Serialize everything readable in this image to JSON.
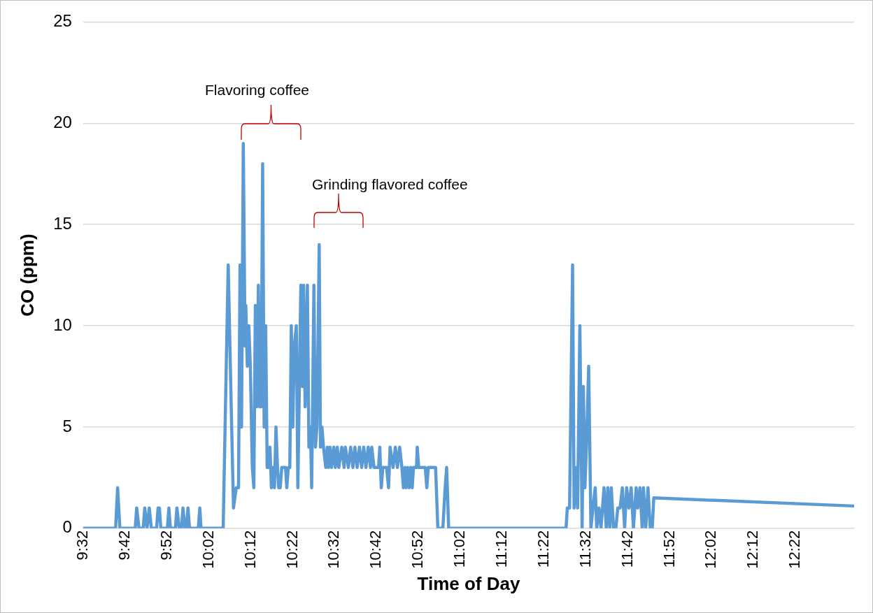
{
  "chart_data": {
    "type": "line",
    "xlabel": "Time of Day",
    "ylabel": "CO (ppm)",
    "x": [
      9.533,
      9.662,
      9.67,
      9.679,
      9.74,
      9.746,
      9.755,
      9.772,
      9.778,
      9.787,
      9.796,
      9.804,
      9.825,
      9.831,
      9.836,
      9.842,
      9.868,
      9.874,
      9.88,
      9.9,
      9.906,
      9.915,
      9.924,
      9.93,
      9.938,
      9.944,
      9.95,
      9.956,
      9.991,
      9.997,
      10.002,
      10.09,
      10.096,
      10.11,
      10.122,
      10.131,
      10.142,
      10.151,
      10.157,
      10.163,
      10.17,
      10.177,
      10.18,
      10.186,
      10.192,
      10.198,
      10.206,
      10.212,
      10.218,
      10.224,
      10.23,
      10.236,
      10.241,
      10.247,
      10.253,
      10.259,
      10.265,
      10.271,
      10.276,
      10.282,
      10.288,
      10.294,
      10.3,
      10.306,
      10.311,
      10.317,
      10.323,
      10.338,
      10.343,
      10.349,
      10.355,
      10.361,
      10.367,
      10.373,
      10.381,
      10.387,
      10.393,
      10.399,
      10.405,
      10.41,
      10.416,
      10.425,
      10.431,
      10.437,
      10.442,
      10.451,
      10.457,
      10.463,
      10.472,
      10.477,
      10.483,
      10.489,
      10.498,
      10.504,
      10.509,
      10.515,
      10.521,
      10.53,
      10.536,
      10.544,
      10.55,
      10.562,
      10.571,
      10.576,
      10.588,
      10.597,
      10.606,
      10.614,
      10.623,
      10.632,
      10.641,
      10.649,
      10.658,
      10.667,
      10.676,
      10.681,
      10.69,
      10.708,
      10.713,
      10.719,
      10.725,
      10.74,
      10.748,
      10.754,
      10.766,
      10.775,
      10.783,
      10.792,
      10.801,
      10.807,
      10.813,
      10.818,
      10.824,
      10.83,
      10.836,
      10.842,
      10.847,
      10.859,
      10.862,
      10.868,
      10.894,
      10.9,
      10.906,
      10.935,
      10.944,
      10.964,
      10.973,
      10.979,
      10.987,
      11.454,
      11.459,
      11.468,
      11.48,
      11.486,
      11.491,
      11.5,
      11.509,
      11.518,
      11.523,
      11.529,
      11.535,
      11.544,
      11.553,
      11.561,
      11.57,
      11.576,
      11.585,
      11.593,
      11.605,
      11.614,
      11.62,
      11.628,
      11.634,
      11.643,
      11.652,
      11.66,
      11.669,
      11.678,
      11.687,
      11.695,
      11.704,
      11.713,
      11.722,
      11.733,
      11.739,
      11.748,
      11.757,
      11.762,
      11.771,
      11.78,
      11.789,
      11.797,
      11.803,
      12.596
    ],
    "series": [
      {
        "color": "#5b9bd5",
        "values": [
          0,
          0,
          2,
          0,
          0,
          1,
          0,
          0,
          1,
          0,
          1,
          0,
          0,
          1,
          1,
          0,
          0,
          1,
          0,
          0,
          1,
          0,
          0,
          1,
          0,
          0,
          1,
          0,
          0,
          1,
          0,
          0,
          4,
          13,
          6,
          1,
          2,
          2,
          13,
          5,
          19,
          9,
          11,
          8,
          10,
          8,
          3,
          2,
          11,
          6,
          12,
          6,
          6,
          18,
          5,
          10,
          3,
          3,
          4,
          2,
          3,
          2,
          5,
          3,
          2,
          2,
          3,
          3,
          2,
          3,
          3,
          10,
          5,
          9,
          10,
          2,
          7,
          12,
          7,
          12,
          6,
          12,
          4,
          5,
          2,
          12,
          4,
          5,
          14,
          4,
          5,
          4,
          3,
          4,
          3,
          4,
          3,
          4,
          3,
          4,
          3,
          4,
          3,
          4,
          3,
          4,
          3,
          4,
          3,
          4,
          3,
          4,
          3,
          4,
          3,
          4,
          3,
          3,
          4,
          2,
          3,
          3,
          2,
          4,
          3,
          4,
          3,
          4,
          3,
          2,
          3,
          2,
          3,
          2,
          3,
          2,
          3,
          3,
          4,
          3,
          3,
          2,
          3,
          3,
          0,
          0,
          2,
          3,
          0,
          0,
          1,
          1,
          13,
          1,
          3,
          1,
          10,
          0,
          7,
          2,
          4,
          8,
          0,
          1,
          2,
          0,
          1,
          0,
          2,
          0,
          2,
          0,
          2,
          0,
          0,
          1,
          1,
          2,
          0,
          2,
          1,
          2,
          0,
          2,
          1,
          2,
          0,
          2,
          0,
          2,
          0,
          0,
          1.5,
          1.1
        ]
      }
    ],
    "xlim": [
      9.533,
      12.6
    ],
    "xticks": [
      {
        "value": 9.5333,
        "label": "9:32"
      },
      {
        "value": 9.7,
        "label": "9:42"
      },
      {
        "value": 9.8667,
        "label": "9:52"
      },
      {
        "value": 10.0333,
        "label": "10:02"
      },
      {
        "value": 10.2,
        "label": "10:12"
      },
      {
        "value": 10.3667,
        "label": "10:22"
      },
      {
        "value": 10.5333,
        "label": "10:32"
      },
      {
        "value": 10.7,
        "label": "10:42"
      },
      {
        "value": 10.8667,
        "label": "10:52"
      },
      {
        "value": 11.0333,
        "label": "11:02"
      },
      {
        "value": 11.2,
        "label": "11:12"
      },
      {
        "value": 11.3667,
        "label": "11:22"
      },
      {
        "value": 11.5333,
        "label": "11:32"
      },
      {
        "value": 11.7,
        "label": "11:42"
      },
      {
        "value": 11.8667,
        "label": "11:52"
      },
      {
        "value": 12.0333,
        "label": "12:02"
      },
      {
        "value": 12.2,
        "label": "12:12"
      },
      {
        "value": 12.3667,
        "label": "12:22"
      }
    ],
    "ylim": [
      0,
      25
    ],
    "yticks": [
      0,
      5,
      10,
      15,
      20,
      25
    ],
    "grid": "y",
    "annotations": [
      "Flavoring coffee",
      "Grinding flavored coffee"
    ]
  }
}
